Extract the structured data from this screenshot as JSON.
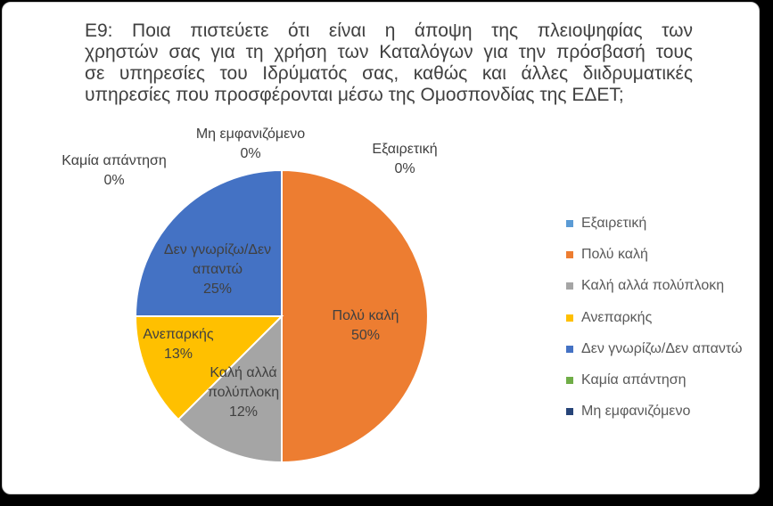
{
  "chart_data": {
    "type": "pie",
    "title_lines": [
      "Ε9: Ποια πιστεύετε ότι είναι η άποψη της πλειοψηφίας των",
      "χρηστών σας για τη χρήση των Καταλόγων για την πρόσβασή τους",
      "σε υπηρεσίες του Ιδρύματός σας, καθώς και άλλες διιδρυματικές",
      "υπηρεσίες που προσφέρονται μέσω της Ομοσπονδίας της ΕΔΕΤ;"
    ],
    "slices": [
      {
        "name": "Εξαιρετική",
        "value": 0,
        "label": "0%",
        "color": "#5b9bd5",
        "data_label": [
          "Εξαιρετική",
          "0%"
        ]
      },
      {
        "name": "Πολύ καλή",
        "value": 50,
        "label": "50%",
        "color": "#ed7d31",
        "data_label": [
          "Πολύ καλή",
          "50%"
        ]
      },
      {
        "name": "Καλή αλλά πολύπλοκη",
        "value": 12.5,
        "label": "12%",
        "color": "#a5a5a5",
        "data_label": [
          "Καλή αλλά",
          "πολύπλοκη",
          "12%"
        ]
      },
      {
        "name": "Ανεπαρκής",
        "value": 12.5,
        "label": "13%",
        "color": "#ffc000",
        "data_label": [
          "Ανεπαρκής",
          "13%"
        ]
      },
      {
        "name": "Δεν γνωρίζω/Δεν απαντώ",
        "value": 25,
        "label": "25%",
        "color": "#4472c4",
        "data_label": [
          "Δεν γνωρίζω/Δεν",
          "απαντώ",
          "25%"
        ]
      },
      {
        "name": "Καμία απάντηση",
        "value": 0,
        "label": "0%",
        "color": "#70ad47",
        "data_label": [
          "Καμία απάντηση",
          "0%"
        ]
      },
      {
        "name": "Μη εμφανιζόμενο",
        "value": 0,
        "label": "0%",
        "color": "#264478",
        "data_label": [
          "Μη εμφανιζόμενο",
          "0%"
        ]
      }
    ],
    "legend_position": "right"
  }
}
